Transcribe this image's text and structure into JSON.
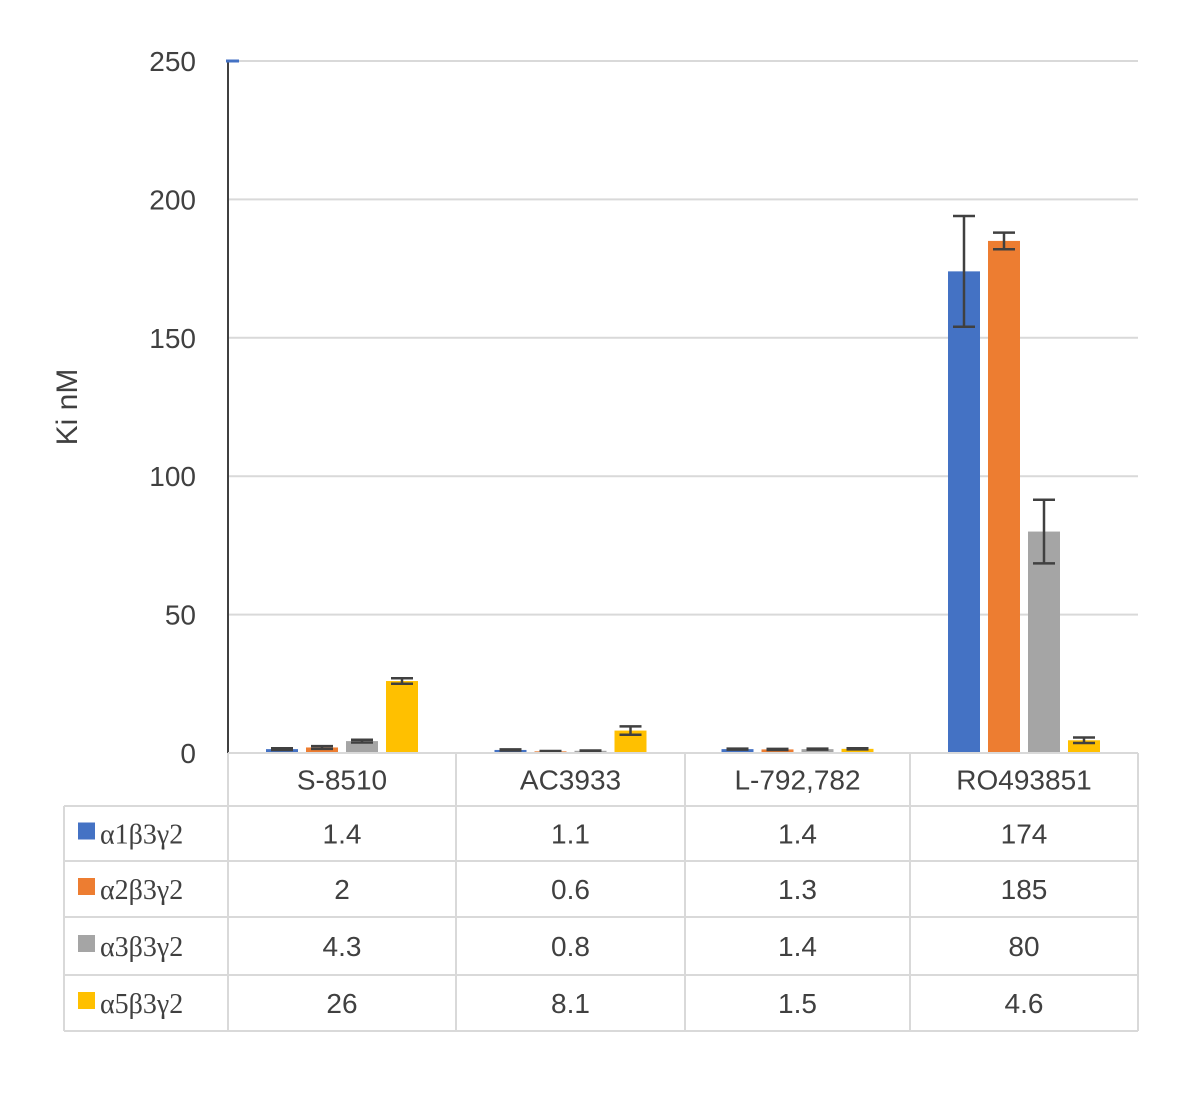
{
  "chart_data": {
    "type": "bar",
    "ylabel": "Ki nM",
    "ylim": [
      0,
      250
    ],
    "yticks": [
      0,
      50,
      100,
      150,
      200,
      250
    ],
    "grid": true,
    "legend_placement": "data-table",
    "categories": [
      "S-8510",
      "AC3933",
      "L-792,782",
      "RO493851"
    ],
    "series": [
      {
        "name": "α1β3γ2",
        "color": "#4472c4",
        "values": [
          1.4,
          1.1,
          1.4,
          174
        ],
        "errors": [
          0.3,
          0.2,
          0.2,
          20
        ]
      },
      {
        "name": "α2β3γ2",
        "color": "#ed7d31",
        "values": [
          2,
          0.6,
          1.3,
          185
        ],
        "errors": [
          0.5,
          0.1,
          0.2,
          3
        ]
      },
      {
        "name": "α3β3γ2",
        "color": "#a5a5a5",
        "values": [
          4.3,
          0.8,
          1.4,
          80
        ],
        "errors": [
          0.5,
          0.1,
          0.2,
          11.5
        ]
      },
      {
        "name": "α5β3γ2",
        "color": "#ffc000",
        "values": [
          26,
          8.1,
          1.5,
          4.6
        ],
        "errors": [
          1,
          1.5,
          0.2,
          1
        ]
      }
    ],
    "table_values": [
      [
        "1.4",
        "1.1",
        "1.4",
        "174"
      ],
      [
        "2",
        "0.6",
        "1.3",
        "185"
      ],
      [
        "4.3",
        "0.8",
        "1.4",
        "80"
      ],
      [
        "26",
        "8.1",
        "1.5",
        "4.6"
      ]
    ]
  }
}
